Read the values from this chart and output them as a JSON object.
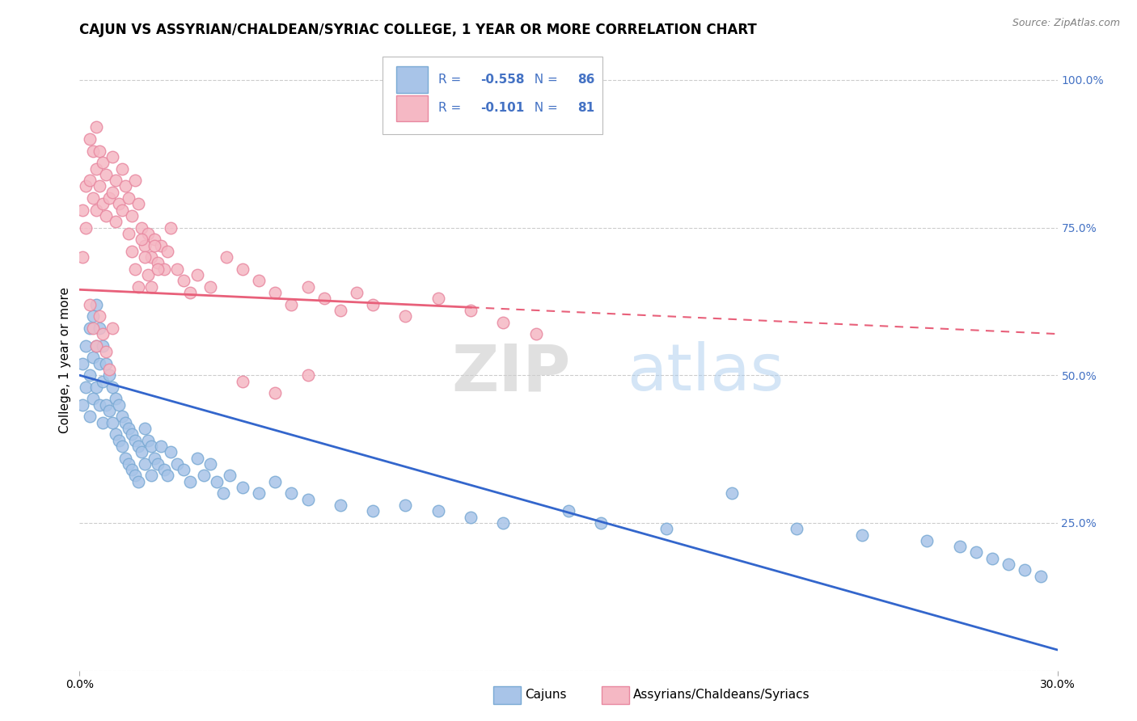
{
  "title": "CAJUN VS ASSYRIAN/CHALDEAN/SYRIAC COLLEGE, 1 YEAR OR MORE CORRELATION CHART",
  "source": "Source: ZipAtlas.com",
  "ylabel": "College, 1 year or more",
  "y_ticks": [
    0.0,
    0.25,
    0.5,
    0.75,
    1.0
  ],
  "y_tick_labels_right": [
    "",
    "25.0%",
    "50.0%",
    "75.0%",
    "100.0%"
  ],
  "x_min": 0.0,
  "x_max": 0.3,
  "y_min": 0.0,
  "y_max": 1.05,
  "cajun_R": -0.558,
  "cajun_N": 86,
  "assyrian_R": -0.101,
  "assyrian_N": 81,
  "cajun_scatter_color": "#a8c4e8",
  "cajun_scatter_edge": "#7aaad4",
  "assyrian_scatter_color": "#f5b8c4",
  "assyrian_scatter_edge": "#e888a0",
  "cajun_line_color": "#3366cc",
  "assyrian_line_color": "#e8607a",
  "legend_label_cajun": "Cajuns",
  "legend_label_assyrian": "Assyrians/Chaldeans/Syriacs",
  "watermark": "ZIPatlas",
  "title_fontsize": 12,
  "axis_label_fontsize": 11,
  "tick_fontsize": 10,
  "right_tick_color": "#4472c4",
  "cajun_line_intercept": 0.5,
  "cajun_line_slope": -1.55,
  "assyrian_line_intercept": 0.645,
  "assyrian_line_slope": -0.25,
  "cajun_x": [
    0.001,
    0.001,
    0.002,
    0.002,
    0.003,
    0.003,
    0.003,
    0.004,
    0.004,
    0.004,
    0.005,
    0.005,
    0.005,
    0.006,
    0.006,
    0.006,
    0.007,
    0.007,
    0.007,
    0.008,
    0.008,
    0.009,
    0.009,
    0.01,
    0.01,
    0.011,
    0.011,
    0.012,
    0.012,
    0.013,
    0.013,
    0.014,
    0.014,
    0.015,
    0.015,
    0.016,
    0.016,
    0.017,
    0.017,
    0.018,
    0.018,
    0.019,
    0.02,
    0.02,
    0.021,
    0.022,
    0.022,
    0.023,
    0.024,
    0.025,
    0.026,
    0.027,
    0.028,
    0.03,
    0.032,
    0.034,
    0.036,
    0.038,
    0.04,
    0.042,
    0.044,
    0.046,
    0.05,
    0.055,
    0.06,
    0.065,
    0.07,
    0.08,
    0.09,
    0.1,
    0.11,
    0.12,
    0.13,
    0.15,
    0.16,
    0.18,
    0.2,
    0.22,
    0.24,
    0.26,
    0.27,
    0.275,
    0.28,
    0.285,
    0.29,
    0.295
  ],
  "cajun_y": [
    0.52,
    0.45,
    0.55,
    0.48,
    0.58,
    0.5,
    0.43,
    0.6,
    0.53,
    0.46,
    0.62,
    0.55,
    0.48,
    0.58,
    0.52,
    0.45,
    0.55,
    0.49,
    0.42,
    0.52,
    0.45,
    0.5,
    0.44,
    0.48,
    0.42,
    0.46,
    0.4,
    0.45,
    0.39,
    0.43,
    0.38,
    0.42,
    0.36,
    0.41,
    0.35,
    0.4,
    0.34,
    0.39,
    0.33,
    0.38,
    0.32,
    0.37,
    0.41,
    0.35,
    0.39,
    0.38,
    0.33,
    0.36,
    0.35,
    0.38,
    0.34,
    0.33,
    0.37,
    0.35,
    0.34,
    0.32,
    0.36,
    0.33,
    0.35,
    0.32,
    0.3,
    0.33,
    0.31,
    0.3,
    0.32,
    0.3,
    0.29,
    0.28,
    0.27,
    0.28,
    0.27,
    0.26,
    0.25,
    0.27,
    0.25,
    0.24,
    0.3,
    0.24,
    0.23,
    0.22,
    0.21,
    0.2,
    0.19,
    0.18,
    0.17,
    0.16
  ],
  "assyrian_x": [
    0.001,
    0.001,
    0.002,
    0.002,
    0.003,
    0.003,
    0.004,
    0.004,
    0.005,
    0.005,
    0.005,
    0.006,
    0.006,
    0.007,
    0.007,
    0.008,
    0.008,
    0.009,
    0.01,
    0.01,
    0.011,
    0.011,
    0.012,
    0.013,
    0.013,
    0.014,
    0.015,
    0.016,
    0.017,
    0.018,
    0.019,
    0.02,
    0.021,
    0.022,
    0.023,
    0.024,
    0.025,
    0.026,
    0.027,
    0.028,
    0.03,
    0.032,
    0.034,
    0.036,
    0.04,
    0.045,
    0.05,
    0.055,
    0.06,
    0.065,
    0.07,
    0.075,
    0.08,
    0.085,
    0.09,
    0.1,
    0.11,
    0.12,
    0.13,
    0.14,
    0.015,
    0.016,
    0.017,
    0.018,
    0.019,
    0.02,
    0.021,
    0.022,
    0.023,
    0.024,
    0.003,
    0.004,
    0.005,
    0.006,
    0.007,
    0.008,
    0.009,
    0.01,
    0.05,
    0.06,
    0.07
  ],
  "assyrian_y": [
    0.78,
    0.7,
    0.82,
    0.75,
    0.9,
    0.83,
    0.88,
    0.8,
    0.92,
    0.85,
    0.78,
    0.88,
    0.82,
    0.86,
    0.79,
    0.84,
    0.77,
    0.8,
    0.87,
    0.81,
    0.76,
    0.83,
    0.79,
    0.85,
    0.78,
    0.82,
    0.8,
    0.77,
    0.83,
    0.79,
    0.75,
    0.72,
    0.74,
    0.7,
    0.73,
    0.69,
    0.72,
    0.68,
    0.71,
    0.75,
    0.68,
    0.66,
    0.64,
    0.67,
    0.65,
    0.7,
    0.68,
    0.66,
    0.64,
    0.62,
    0.65,
    0.63,
    0.61,
    0.64,
    0.62,
    0.6,
    0.63,
    0.61,
    0.59,
    0.57,
    0.74,
    0.71,
    0.68,
    0.65,
    0.73,
    0.7,
    0.67,
    0.65,
    0.72,
    0.68,
    0.62,
    0.58,
    0.55,
    0.6,
    0.57,
    0.54,
    0.51,
    0.58,
    0.49,
    0.47,
    0.5
  ]
}
